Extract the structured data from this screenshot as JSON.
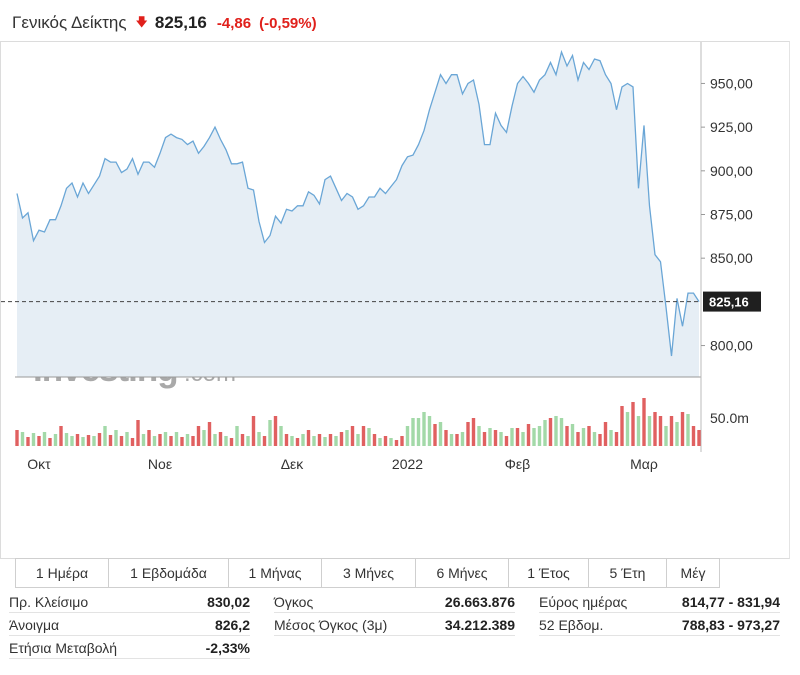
{
  "header": {
    "title": "Γενικός Δείκτης",
    "direction_icon": "down-arrow-icon",
    "price": "825,16",
    "change": "-4,86",
    "change_pct": "(-0,59%)",
    "negative_color": "#e0201b"
  },
  "chart_data": {
    "type": "area",
    "title": "",
    "y_ticks": [
      "950,00",
      "925,00",
      "900,00",
      "875,00",
      "850,00",
      "800,00"
    ],
    "y_tick_values": [
      950,
      925,
      900,
      875,
      850,
      800
    ],
    "ylim": [
      782,
      968
    ],
    "x_ticks": [
      "Οκτ",
      "Νοε",
      "Δεκ",
      "2022",
      "Φεβ",
      "Μαρ"
    ],
    "x_tick_index": [
      4,
      26,
      50,
      71,
      91,
      114
    ],
    "last_value_label": "825,16",
    "last_value": 825.16,
    "volume_label": "50.0m",
    "watermark": "Investing",
    "watermark_suffix": ".com",
    "line_color": "#6aa6d6",
    "fill_color": "#e6eef5",
    "volume_up_color": "#a3d9a8",
    "volume_down_color": "#e06060",
    "grid": false,
    "values": [
      887,
      873,
      876,
      860,
      866,
      865,
      872,
      872,
      880,
      890,
      893,
      885,
      893,
      887,
      892,
      897,
      907,
      905,
      905,
      899,
      901,
      907,
      898,
      905,
      905,
      902,
      910,
      919,
      921,
      919,
      918,
      915,
      917,
      910,
      914,
      919,
      925,
      918,
      912,
      904,
      904,
      905,
      890,
      889,
      871,
      859,
      863,
      874,
      870,
      878,
      877,
      880,
      880,
      888,
      886,
      881,
      895,
      897,
      890,
      883,
      887,
      885,
      878,
      880,
      885,
      885,
      890,
      887,
      891,
      895,
      903,
      908,
      909,
      915,
      923,
      935,
      945,
      955,
      950,
      955,
      955,
      944,
      950,
      952,
      938,
      915,
      915,
      933,
      926,
      922,
      937,
      950,
      954,
      950,
      945,
      952,
      955,
      962,
      955,
      968,
      960,
      966,
      952,
      962,
      958,
      964,
      963,
      955,
      950,
      935,
      948,
      950,
      948,
      890,
      926,
      880,
      852,
      848,
      822,
      794,
      827,
      811,
      830,
      830,
      825.16
    ],
    "volume": [
      16,
      14,
      9,
      13,
      10,
      14,
      8,
      12,
      20,
      13,
      10,
      12,
      9,
      11,
      10,
      13,
      20,
      11,
      16,
      10,
      14,
      8,
      26,
      12,
      16,
      10,
      12,
      14,
      10,
      14,
      9,
      12,
      10,
      20,
      16,
      24,
      12,
      14,
      10,
      8,
      20,
      12,
      10,
      30,
      14,
      10,
      26,
      30,
      20,
      12,
      10,
      8,
      12,
      16,
      10,
      12,
      9,
      12,
      10,
      14,
      16,
      20,
      12,
      20,
      18,
      12,
      8,
      10,
      8,
      6,
      10,
      20,
      28,
      28,
      34,
      30,
      22,
      24,
      16,
      12,
      12,
      14,
      24,
      28,
      20,
      14,
      18,
      16,
      14,
      10,
      18,
      18,
      14,
      22,
      18,
      20,
      26,
      28,
      30,
      28,
      20,
      22,
      14,
      18,
      20,
      14,
      12,
      24,
      16,
      14,
      40,
      34,
      44,
      30,
      48,
      30,
      34,
      30,
      20,
      30,
      24,
      34,
      32,
      20,
      16
    ],
    "volume_dir": [
      "d",
      "u",
      "d",
      "u",
      "d",
      "u",
      "d",
      "u",
      "d",
      "u",
      "u",
      "d",
      "u",
      "d",
      "u",
      "d",
      "u",
      "d",
      "u",
      "d",
      "u",
      "d",
      "d",
      "u",
      "d",
      "u",
      "d",
      "u",
      "d",
      "u",
      "d",
      "u",
      "d",
      "d",
      "u",
      "d",
      "u",
      "d",
      "u",
      "d",
      "u",
      "d",
      "u",
      "d",
      "u",
      "d",
      "u",
      "d",
      "u",
      "d",
      "u",
      "d",
      "u",
      "d",
      "u",
      "d",
      "u",
      "d",
      "u",
      "d",
      "u",
      "d",
      "u",
      "d",
      "u",
      "d",
      "u",
      "d",
      "u",
      "d",
      "d",
      "u",
      "u",
      "u",
      "u",
      "u",
      "d",
      "u",
      "d",
      "u",
      "d",
      "u",
      "d",
      "d",
      "u",
      "d",
      "u",
      "d",
      "u",
      "d",
      "u",
      "d",
      "u",
      "d",
      "u",
      "u",
      "u",
      "d",
      "u",
      "u",
      "d",
      "u",
      "d",
      "u",
      "d",
      "u",
      "d",
      "d",
      "u",
      "d",
      "d",
      "u",
      "d",
      "u",
      "d",
      "u",
      "d",
      "d",
      "u",
      "d",
      "u",
      "d",
      "u",
      "d",
      "d"
    ]
  },
  "range_tabs": [
    {
      "label": "1 Ημέρα",
      "w": 93
    },
    {
      "label": "1 Εβδομάδα",
      "w": 120
    },
    {
      "label": "1 Μήνας",
      "w": 93
    },
    {
      "label": "3 Μήνες",
      "w": 94
    },
    {
      "label": "6 Μήνες",
      "w": 93
    },
    {
      "label": "1 Έτος",
      "w": 80
    },
    {
      "label": "5 Έτη",
      "w": 78
    },
    {
      "label": "Μέγ",
      "w": 52
    }
  ],
  "stats": [
    {
      "label": "Πρ. Κλείσιμο",
      "value": "830,02"
    },
    {
      "label": "Άνοιγμα",
      "value": "826,2"
    },
    {
      "label": "Ετήσια Μεταβολή",
      "value": "-2,33%"
    },
    {
      "label": "Όγκος",
      "value": "26.663.876"
    },
    {
      "label": "Μέσος Όγκος (3μ)",
      "value": "34.212.389"
    },
    {
      "label": "Εύρος ημέρας",
      "value": "814,77 - 831,94"
    },
    {
      "label": "52 Εβδομ.",
      "value": "788,83 - 973,27"
    }
  ]
}
